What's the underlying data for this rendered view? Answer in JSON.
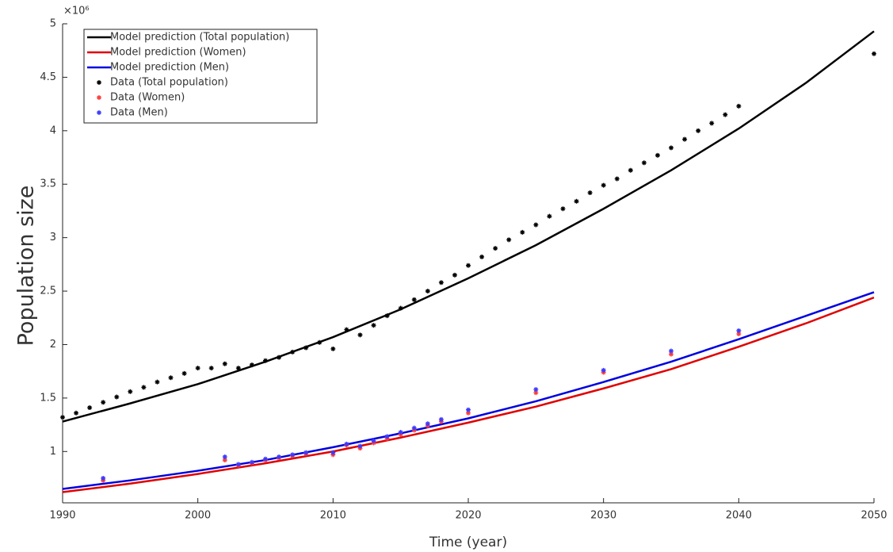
{
  "chart_data": {
    "type": "line",
    "x_label": "Time (year)",
    "y_label": "Population size",
    "y_multiplier": "×10⁶",
    "xlim": [
      1990,
      2050
    ],
    "xticks": [
      1990,
      2000,
      2010,
      2020,
      2030,
      2040,
      2050
    ],
    "ylim": [
      520000,
      5000000
    ],
    "yticks": [
      {
        "value": 1000000,
        "label": "1"
      },
      {
        "value": 1500000,
        "label": "1.5"
      },
      {
        "value": 2000000,
        "label": "2"
      },
      {
        "value": 2500000,
        "label": "2.5"
      },
      {
        "value": 3000000,
        "label": "3"
      },
      {
        "value": 3500000,
        "label": "3.5"
      },
      {
        "value": 4000000,
        "label": "4"
      },
      {
        "value": 4500000,
        "label": "4.5"
      },
      {
        "value": 5000000,
        "label": "5"
      }
    ],
    "grid": false,
    "legend": "upper left",
    "series": [
      {
        "name": "Model prediction (Total population)",
        "color": "#000000",
        "style": "line",
        "x": [
          1990,
          1995,
          2000,
          2005,
          2010,
          2015,
          2020,
          2025,
          2030,
          2035,
          2040,
          2045,
          2050
        ],
        "values": [
          1280000,
          1450000,
          1630000,
          1840000,
          2070000,
          2330000,
          2620000,
          2930000,
          3270000,
          3630000,
          4020000,
          4450000,
          4930000
        ]
      },
      {
        "name": "Model prediction (Women)",
        "color": "#e00000",
        "style": "line",
        "x": [
          1990,
          1995,
          2000,
          2005,
          2010,
          2015,
          2020,
          2025,
          2030,
          2035,
          2040,
          2045,
          2050
        ],
        "values": [
          620000,
          700000,
          790000,
          890000,
          1000000,
          1130000,
          1270000,
          1420000,
          1590000,
          1770000,
          1980000,
          2200000,
          2440000
        ]
      },
      {
        "name": "Model prediction (Men)",
        "color": "#0000e0",
        "style": "line",
        "x": [
          1990,
          1995,
          2000,
          2005,
          2010,
          2015,
          2020,
          2025,
          2030,
          2035,
          2040,
          2045,
          2050
        ],
        "values": [
          650000,
          730000,
          820000,
          920000,
          1040000,
          1170000,
          1310000,
          1470000,
          1650000,
          1840000,
          2050000,
          2270000,
          2490000
        ]
      },
      {
        "name": "Data (Total population)",
        "color": "#000000",
        "style": "marker",
        "x": [
          1990,
          1991,
          1992,
          1993,
          1994,
          1995,
          1996,
          1997,
          1998,
          1999,
          2000,
          2001,
          2002,
          2003,
          2004,
          2005,
          2006,
          2007,
          2008,
          2009,
          2010,
          2011,
          2012,
          2013,
          2014,
          2015,
          2016,
          2017,
          2018,
          2019,
          2020,
          2021,
          2022,
          2023,
          2024,
          2025,
          2026,
          2027,
          2028,
          2029,
          2030,
          2031,
          2032,
          2033,
          2034,
          2035,
          2036,
          2037,
          2038,
          2039,
          2040,
          2050
        ],
        "values": [
          1320000,
          1360000,
          1410000,
          1460000,
          1510000,
          1560000,
          1600000,
          1650000,
          1690000,
          1730000,
          1780000,
          1780000,
          1820000,
          1780000,
          1810000,
          1850000,
          1880000,
          1930000,
          1970000,
          2020000,
          1960000,
          2140000,
          2090000,
          2180000,
          2270000,
          2340000,
          2420000,
          2500000,
          2580000,
          2650000,
          2740000,
          2820000,
          2900000,
          2980000,
          3050000,
          3120000,
          3200000,
          3270000,
          3340000,
          3420000,
          3490000,
          3550000,
          3630000,
          3700000,
          3770000,
          3840000,
          3920000,
          4000000,
          4070000,
          4150000,
          4230000,
          4720000
        ]
      },
      {
        "name": "Data (Women)",
        "color": "#ff3b3b",
        "style": "marker",
        "x": [
          1993,
          2002,
          2003,
          2004,
          2005,
          2006,
          2007,
          2008,
          2010,
          2011,
          2012,
          2013,
          2014,
          2015,
          2016,
          2017,
          2018,
          2020,
          2025,
          2030,
          2035,
          2040
        ],
        "values": [
          730000,
          920000,
          870000,
          890000,
          920000,
          940000,
          960000,
          980000,
          970000,
          1060000,
          1030000,
          1080000,
          1120000,
          1160000,
          1200000,
          1240000,
          1280000,
          1360000,
          1550000,
          1740000,
          1910000,
          2100000
        ]
      },
      {
        "name": "Data (Men)",
        "color": "#3b3bff",
        "style": "marker",
        "x": [
          1993,
          2002,
          2003,
          2004,
          2005,
          2006,
          2007,
          2008,
          2010,
          2011,
          2012,
          2013,
          2014,
          2015,
          2016,
          2017,
          2018,
          2020,
          2025,
          2030,
          2035,
          2040
        ],
        "values": [
          750000,
          950000,
          880000,
          900000,
          930000,
          950000,
          970000,
          990000,
          990000,
          1070000,
          1050000,
          1100000,
          1140000,
          1180000,
          1220000,
          1260000,
          1300000,
          1390000,
          1580000,
          1760000,
          1940000,
          2130000
        ]
      }
    ]
  }
}
